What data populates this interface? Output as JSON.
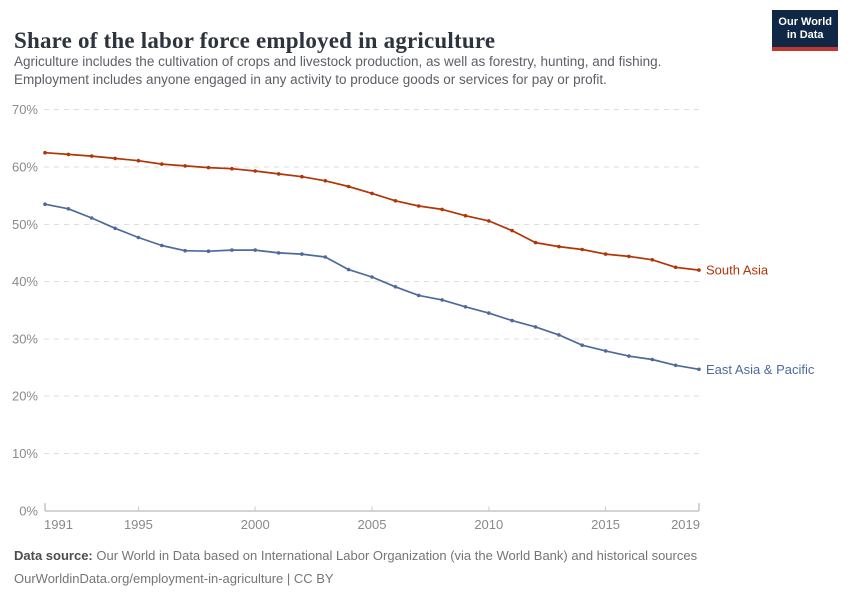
{
  "header": {
    "title": "Share of the labor force employed in agriculture",
    "subtitle_line1": "Agriculture includes the cultivation of crops and livestock production, as well as forestry, hunting, and fishing.",
    "subtitle_line2": "Employment includes anyone engaged in any activity to produce goods or services for pay or profit."
  },
  "logo": {
    "line1": "Our World",
    "line2": "in Data",
    "bg_color": "#102846",
    "stripe_color": "#be3732"
  },
  "chart_data": {
    "type": "line",
    "x": [
      1991,
      1992,
      1993,
      1994,
      1995,
      1996,
      1997,
      1998,
      1999,
      2000,
      2001,
      2002,
      2003,
      2004,
      2005,
      2006,
      2007,
      2008,
      2009,
      2010,
      2011,
      2012,
      2013,
      2014,
      2015,
      2016,
      2017,
      2018,
      2019
    ],
    "series": [
      {
        "name": "South Asia",
        "color": "#b13507",
        "values": [
          62.5,
          62.2,
          61.9,
          61.5,
          61.1,
          60.5,
          60.2,
          59.9,
          59.7,
          59.3,
          58.8,
          58.3,
          57.6,
          56.6,
          55.4,
          54.1,
          53.2,
          52.6,
          51.5,
          50.6,
          48.9,
          46.8,
          46.1,
          45.6,
          44.8,
          44.4,
          43.8,
          42.5,
          42.0
        ]
      },
      {
        "name": "East Asia & Pacific",
        "color": "#4c6a9c",
        "values": [
          53.5,
          52.7,
          51.1,
          49.3,
          47.7,
          46.3,
          45.4,
          45.3,
          45.5,
          45.5,
          45.0,
          44.8,
          44.3,
          42.1,
          40.8,
          39.1,
          37.6,
          36.8,
          35.6,
          34.5,
          33.2,
          32.1,
          30.7,
          28.9,
          27.9,
          27.0,
          26.4,
          25.4,
          24.7
        ]
      }
    ],
    "ylim": [
      0,
      70
    ],
    "yticks": [
      0,
      10,
      20,
      30,
      40,
      50,
      60,
      70
    ],
    "ytick_suffix": "%",
    "xticks": [
      1991,
      1995,
      2000,
      2005,
      2010,
      2015,
      2019
    ],
    "grid": true,
    "legend_position": "end-of-line-labels",
    "grid_color": "#dedede",
    "axis_color": "#a9a9a9",
    "tick_label_color": "#8a8a8a"
  },
  "footer": {
    "datasource_label": "Data source:",
    "datasource_text": " Our World in Data based on International Labor Organization (via the World Bank) and historical sources",
    "license_line": "OurWorldinData.org/employment-in-agriculture | CC BY"
  }
}
